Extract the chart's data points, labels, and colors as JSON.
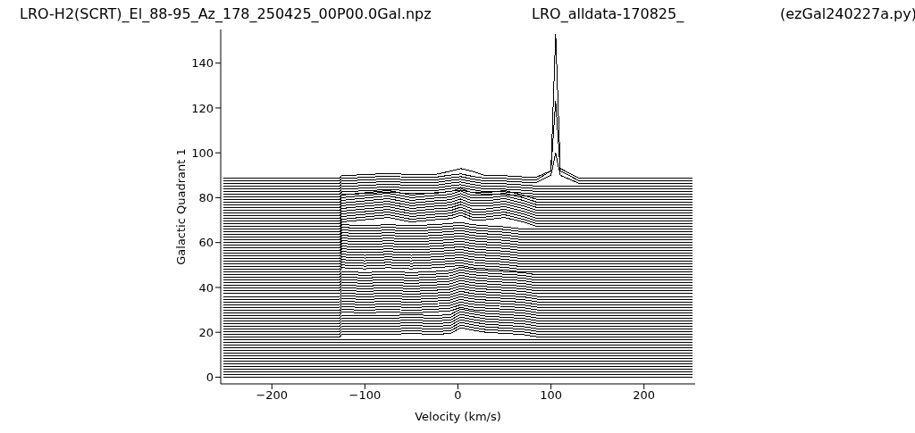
{
  "chart_data": {
    "type": "line",
    "title": "LRO-H2(SCRT)_El_88-95_Az_178_250425_00P00.0Gal.npz",
    "annotations": [
      "LRO_alldata-170825_",
      "(ezGal240227a.py)"
    ],
    "xlabel": "Velocity (km/s)",
    "ylabel": "Galactic Quadrant 1",
    "xlim": [
      -255,
      255
    ],
    "ylim": [
      -3,
      155
    ],
    "xticks": [
      {
        "value": -200,
        "label": "−200"
      },
      {
        "value": -100,
        "label": "−100"
      },
      0,
      100,
      200
    ],
    "yticks": [
      0,
      20,
      40,
      60,
      80,
      100,
      120,
      140
    ],
    "marker": "none",
    "line_style": "solid",
    "series": [
      {
        "color": "#000000",
        "x": [
          -252,
          252
        ],
        "values": [
          0,
          0
        ]
      },
      {
        "color": "#000000",
        "x": [
          -252,
          252
        ],
        "values": [
          1.2,
          1.2
        ]
      },
      {
        "color": "#000000",
        "x": [
          -252,
          252
        ],
        "values": [
          2.4,
          2.4
        ]
      },
      {
        "color": "#000000",
        "x": [
          -252,
          252
        ],
        "values": [
          3.6,
          3.6
        ]
      },
      {
        "color": "#000000",
        "x": [
          -252,
          252
        ],
        "values": [
          4.8,
          4.8
        ]
      },
      {
        "color": "#000000",
        "x": [
          -252,
          252
        ],
        "values": [
          6,
          6
        ]
      },
      {
        "color": "#000000",
        "x": [
          -252,
          252
        ],
        "values": [
          7.2,
          7.2
        ]
      },
      {
        "color": "#000000",
        "x": [
          -252,
          252
        ],
        "values": [
          8.4,
          8.4
        ]
      },
      {
        "color": "#000000",
        "x": [
          -252,
          252
        ],
        "values": [
          9.6,
          9.6
        ]
      },
      {
        "color": "#000000",
        "x": [
          -252,
          252
        ],
        "values": [
          10.8,
          10.8
        ]
      },
      {
        "color": "#000000",
        "x": [
          -252,
          252
        ],
        "values": [
          12,
          12
        ]
      },
      {
        "color": "#000000",
        "x": [
          -252,
          252
        ],
        "values": [
          13.2,
          13.2
        ]
      },
      {
        "color": "#000000",
        "x": [
          -252,
          252
        ],
        "values": [
          14.4,
          14.4
        ]
      },
      {
        "color": "#000000",
        "x": [
          -252,
          252
        ],
        "values": [
          15.6,
          15.6
        ]
      },
      {
        "color": "#000000",
        "x": [
          -252,
          252
        ],
        "values": [
          16.8,
          16.8
        ]
      },
      {
        "color": "#000000",
        "x": [
          -252,
          -127,
          -125,
          -100,
          -75,
          -50,
          -25,
          -8,
          3,
          15,
          30,
          50,
          70,
          85,
          252
        ],
        "values": [
          18,
          18,
          19,
          19,
          19,
          19.5,
          19,
          19.5,
          22,
          21,
          20,
          19.5,
          19,
          18,
          18
        ]
      },
      {
        "color": "#000000",
        "x": [
          -252,
          -127,
          -125,
          -100,
          -75,
          -50,
          -25,
          -8,
          3,
          15,
          30,
          50,
          70,
          85,
          252
        ],
        "values": [
          19.2,
          19.2,
          20.2,
          20.2,
          20.2,
          20.7,
          20.2,
          20.7,
          23.2,
          22.2,
          21.2,
          20.7,
          20.2,
          19.2,
          19.2
        ]
      },
      {
        "color": "#000000",
        "x": [
          -252,
          -127,
          -125,
          -100,
          -75,
          -50,
          -25,
          -8,
          3,
          15,
          30,
          50,
          70,
          85,
          252
        ],
        "values": [
          20.4,
          20.4,
          21.4,
          21.4,
          21.4,
          21.9,
          21.4,
          21.9,
          24.4,
          23.4,
          22.4,
          21.9,
          21.4,
          20.4,
          20.4
        ]
      },
      {
        "color": "#000000",
        "x": [
          -252,
          -127,
          -125,
          -100,
          -75,
          -50,
          -25,
          -8,
          3,
          15,
          30,
          50,
          70,
          85,
          252
        ],
        "values": [
          21.6,
          21.6,
          22.6,
          22.6,
          22.6,
          23.1,
          22.6,
          23.1,
          25.6,
          24.6,
          23.6,
          23.1,
          22.6,
          21.6,
          21.6
        ]
      },
      {
        "color": "#000000",
        "x": [
          -252,
          -127,
          -125,
          -100,
          -75,
          -50,
          -25,
          -8,
          3,
          15,
          30,
          50,
          70,
          85,
          252
        ],
        "values": [
          22.8,
          22.8,
          23.8,
          23.8,
          23.8,
          24.3,
          23.8,
          24.3,
          26.8,
          25.8,
          24.8,
          24.3,
          23.8,
          22.8,
          22.8
        ]
      },
      {
        "color": "#000000",
        "x": [
          -252,
          -127,
          -125,
          -100,
          -75,
          -50,
          -25,
          -8,
          3,
          15,
          30,
          50,
          70,
          85,
          252
        ],
        "values": [
          24,
          24,
          25,
          25,
          25,
          25.5,
          25,
          25.5,
          28,
          27,
          26,
          25.5,
          25,
          24,
          24
        ]
      },
      {
        "color": "#000000",
        "x": [
          -252,
          -127,
          -125,
          -100,
          -75,
          -50,
          -25,
          -8,
          3,
          15,
          30,
          50,
          70,
          85,
          252
        ],
        "values": [
          25.2,
          25.2,
          26.2,
          26.2,
          26.2,
          26.7,
          26.2,
          26.7,
          29.2,
          28.2,
          27.2,
          26.7,
          26.2,
          25.2,
          25.2
        ]
      },
      {
        "color": "#000000",
        "x": [
          -252,
          -127,
          -125,
          -100,
          -75,
          -50,
          -25,
          -8,
          3,
          15,
          30,
          50,
          70,
          85,
          252
        ],
        "values": [
          26.4,
          26.4,
          27.4,
          27.4,
          27.4,
          27.9,
          27.4,
          27.9,
          30.4,
          29.4,
          28.4,
          27.9,
          27.4,
          26.4,
          26.4
        ]
      },
      {
        "color": "#000000",
        "x": [
          -252,
          -127,
          -125,
          -100,
          -75,
          -50,
          -25,
          -8,
          3,
          15,
          30,
          50,
          70,
          85,
          252
        ],
        "values": [
          27.6,
          27.6,
          29.1,
          28.6,
          29.1,
          28.6,
          29.1,
          29.6,
          31.1,
          30.1,
          29.6,
          29.1,
          28.6,
          27.6,
          27.6
        ]
      },
      {
        "color": "#000000",
        "x": [
          -252,
          -127,
          -125,
          -100,
          -75,
          -50,
          -25,
          -8,
          3,
          15,
          30,
          50,
          70,
          85,
          252
        ],
        "values": [
          28.8,
          28.8,
          30.3,
          29.8,
          30.3,
          29.8,
          30.3,
          30.8,
          32.3,
          31.3,
          30.8,
          30.3,
          29.8,
          28.8,
          28.8
        ]
      },
      {
        "color": "#000000",
        "x": [
          -252,
          -127,
          -125,
          -100,
          -75,
          -50,
          -25,
          -8,
          3,
          15,
          30,
          50,
          70,
          85,
          252
        ],
        "values": [
          30,
          30,
          31.5,
          31,
          31.5,
          31,
          31.5,
          32,
          33.5,
          32.5,
          32,
          31.5,
          31,
          30,
          30
        ]
      },
      {
        "color": "#000000",
        "x": [
          -252,
          -127,
          -125,
          -100,
          -75,
          -50,
          -25,
          -8,
          3,
          15,
          30,
          50,
          70,
          85,
          252
        ],
        "values": [
          31.2,
          31.2,
          32.7,
          32.2,
          32.7,
          32.2,
          32.7,
          33.2,
          34.7,
          33.7,
          33.2,
          32.7,
          32.2,
          31.2,
          31.2
        ]
      },
      {
        "color": "#000000",
        "x": [
          -252,
          -127,
          -125,
          -100,
          -75,
          -50,
          -25,
          -8,
          3,
          15,
          30,
          50,
          70,
          85,
          252
        ],
        "values": [
          32.4,
          32.4,
          33.9,
          33.4,
          33.9,
          33.4,
          33.9,
          34.4,
          35.9,
          34.9,
          34.4,
          33.9,
          33.4,
          32.4,
          32.4
        ]
      },
      {
        "color": "#000000",
        "x": [
          -252,
          -127,
          -125,
          -100,
          -75,
          -50,
          -25,
          -8,
          3,
          15,
          30,
          50,
          70,
          85,
          252
        ],
        "values": [
          33.6,
          33.6,
          35.1,
          34.6,
          35.1,
          34.6,
          35.1,
          35.6,
          37.1,
          36.1,
          35.6,
          35.1,
          34.6,
          33.6,
          33.6
        ]
      },
      {
        "color": "#000000",
        "x": [
          -252,
          -127,
          -125,
          -100,
          -75,
          -50,
          -25,
          -8,
          3,
          15,
          30,
          50,
          70,
          85,
          252
        ],
        "values": [
          34.8,
          34.8,
          36.3,
          35.8,
          36.3,
          35.8,
          36.3,
          36.8,
          38.3,
          37.3,
          36.8,
          36.3,
          35.8,
          34.8,
          34.8
        ]
      },
      {
        "color": "#000000",
        "x": [
          -252,
          -127,
          -125,
          -100,
          -75,
          -50,
          -25,
          -8,
          3,
          15,
          30,
          50,
          70,
          85,
          252
        ],
        "values": [
          36,
          36,
          37.5,
          37,
          37.5,
          37,
          37.5,
          38,
          39.5,
          38.5,
          38,
          37.5,
          37,
          36,
          36
        ]
      },
      {
        "color": "#000000",
        "x": [
          -252,
          -127,
          -125,
          -100,
          -75,
          -50,
          -25,
          -8,
          3,
          15,
          30,
          50,
          70,
          85,
          252
        ],
        "values": [
          37.2,
          37.2,
          38.7,
          38.2,
          38.7,
          38.2,
          38.7,
          39.2,
          40.7,
          39.7,
          39.2,
          38.7,
          38.2,
          37.2,
          37.2
        ]
      },
      {
        "color": "#000000",
        "x": [
          -252,
          -127,
          -125,
          -100,
          -75,
          -50,
          -25,
          -8,
          3,
          15,
          30,
          50,
          70,
          85,
          252
        ],
        "values": [
          38.4,
          38.4,
          39.9,
          39.4,
          39.9,
          39.4,
          39.9,
          40.4,
          41.9,
          40.9,
          40.4,
          39.9,
          39.4,
          38.4,
          38.4
        ]
      },
      {
        "color": "#000000",
        "x": [
          -252,
          -127,
          -125,
          -100,
          -75,
          -50,
          -25,
          -8,
          3,
          15,
          30,
          50,
          70,
          85,
          252
        ],
        "values": [
          39.6,
          39.6,
          41.1,
          40.6,
          41.1,
          40.6,
          41.1,
          41.6,
          43.1,
          42.1,
          41.6,
          41.1,
          40.6,
          39.6,
          39.6
        ]
      },
      {
        "color": "#000000",
        "x": [
          -252,
          -127,
          -125,
          -100,
          -75,
          -50,
          -25,
          -8,
          3,
          15,
          30,
          50,
          70,
          85,
          252
        ],
        "values": [
          40.8,
          40.8,
          42.3,
          41.8,
          42.3,
          41.8,
          42.3,
          42.8,
          44.3,
          43.3,
          42.8,
          42.3,
          41.8,
          40.8,
          40.8
        ]
      },
      {
        "color": "#000000",
        "x": [
          -252,
          -127,
          -125,
          -100,
          -75,
          -50,
          -25,
          -8,
          3,
          15,
          30,
          50,
          70,
          85,
          252
        ],
        "values": [
          42,
          42,
          43.5,
          43,
          43.5,
          43,
          43.5,
          44,
          45.5,
          44.5,
          44,
          43.5,
          43,
          42,
          42
        ]
      },
      {
        "color": "#000000",
        "x": [
          -252,
          -127,
          -125,
          -100,
          -75,
          -50,
          -25,
          -8,
          3,
          15,
          30,
          50,
          70,
          85,
          252
        ],
        "values": [
          43.2,
          43.2,
          44.7,
          44.2,
          44.7,
          44.2,
          44.7,
          45.2,
          46.7,
          45.7,
          45.2,
          44.7,
          44.2,
          43.2,
          43.2
        ]
      },
      {
        "color": "#000000",
        "x": [
          -252,
          -127,
          -125,
          -100,
          -75,
          -50,
          -25,
          -8,
          3,
          15,
          30,
          50,
          70,
          85,
          252
        ],
        "values": [
          44.4,
          44.4,
          45.9,
          45.4,
          45.9,
          45.4,
          45.9,
          46.4,
          47.9,
          46.9,
          46.4,
          45.9,
          45.4,
          44.4,
          44.4
        ]
      },
      {
        "color": "#000000",
        "x": [
          -252,
          -127,
          -125,
          -100,
          -75,
          -50,
          -25,
          -8,
          3,
          15,
          30,
          50,
          70,
          85,
          252
        ],
        "values": [
          45.6,
          45.6,
          47.1,
          46.6,
          47.1,
          46.6,
          47.1,
          47.6,
          49.1,
          48.1,
          47.6,
          47.1,
          46.6,
          45.6,
          45.6
        ]
      },
      {
        "color": "#000000",
        "x": [
          -252,
          -127,
          -125,
          -100,
          -75,
          -50,
          -25,
          -8,
          3,
          15,
          30,
          50,
          70,
          252
        ],
        "values": [
          46.8,
          46.8,
          48.8,
          48.3,
          48.8,
          48.3,
          48.8,
          49.3,
          49.8,
          48.8,
          48.3,
          47.8,
          46.8,
          46.8
        ]
      },
      {
        "color": "#000000",
        "x": [
          -252,
          -127,
          -125,
          -100,
          -75,
          -50,
          -25,
          -8,
          3,
          15,
          30,
          50,
          70,
          252
        ],
        "values": [
          48,
          48,
          50,
          49.5,
          50,
          49.5,
          50,
          50.5,
          51,
          50,
          49.5,
          49,
          48,
          48
        ]
      },
      {
        "color": "#000000",
        "x": [
          -252,
          -127,
          -125,
          -100,
          -75,
          -50,
          -25,
          -8,
          3,
          15,
          30,
          50,
          70,
          252
        ],
        "values": [
          49.2,
          49.2,
          51.2,
          50.7,
          51.2,
          50.7,
          51.2,
          51.7,
          52.2,
          51.2,
          50.7,
          50.2,
          49.2,
          49.2
        ]
      },
      {
        "color": "#000000",
        "x": [
          -252,
          -127,
          -125,
          -100,
          -75,
          -50,
          -25,
          -8,
          3,
          15,
          30,
          50,
          70,
          252
        ],
        "values": [
          50.4,
          50.4,
          52.4,
          51.9,
          52.4,
          51.9,
          52.4,
          52.9,
          53.4,
          52.4,
          51.9,
          51.4,
          50.4,
          50.4
        ]
      },
      {
        "color": "#000000",
        "x": [
          -252,
          -127,
          -125,
          -100,
          -75,
          -50,
          -25,
          -8,
          3,
          15,
          30,
          50,
          70,
          252
        ],
        "values": [
          51.6,
          51.6,
          53.6,
          53.1,
          53.6,
          53.1,
          53.6,
          54.1,
          54.6,
          53.6,
          53.1,
          52.6,
          51.6,
          51.6
        ]
      },
      {
        "color": "#000000",
        "x": [
          -252,
          -127,
          -125,
          -100,
          -75,
          -50,
          -25,
          -8,
          3,
          15,
          30,
          50,
          70,
          252
        ],
        "values": [
          52.8,
          52.8,
          54.8,
          54.3,
          54.8,
          54.3,
          54.8,
          55.3,
          55.8,
          54.8,
          54.3,
          53.8,
          52.8,
          52.8
        ]
      },
      {
        "color": "#000000",
        "x": [
          -252,
          -127,
          -125,
          -100,
          -75,
          -50,
          -25,
          -8,
          3,
          15,
          30,
          50,
          70,
          252
        ],
        "values": [
          54,
          54,
          56,
          55.5,
          56,
          55.5,
          56,
          56.5,
          57,
          56,
          55.5,
          55,
          54,
          54
        ]
      },
      {
        "color": "#000000",
        "x": [
          -252,
          -127,
          -125,
          -100,
          -75,
          -50,
          -25,
          -8,
          3,
          15,
          30,
          50,
          70,
          252
        ],
        "values": [
          55.2,
          55.2,
          57.2,
          56.7,
          57.2,
          56.7,
          57.2,
          57.7,
          58.2,
          57.2,
          56.7,
          56.2,
          55.2,
          55.2
        ]
      },
      {
        "color": "#000000",
        "x": [
          -252,
          -127,
          -125,
          -100,
          -75,
          -50,
          -25,
          -8,
          3,
          15,
          30,
          50,
          70,
          252
        ],
        "values": [
          56.4,
          56.4,
          58.4,
          57.9,
          58.4,
          57.9,
          58.4,
          58.9,
          59.4,
          58.4,
          57.9,
          57.4,
          56.4,
          56.4
        ]
      },
      {
        "color": "#000000",
        "x": [
          -252,
          -127,
          -125,
          -100,
          -75,
          -50,
          -25,
          -8,
          3,
          15,
          30,
          50,
          70,
          252
        ],
        "values": [
          57.6,
          57.6,
          59.6,
          59.1,
          59.6,
          59.1,
          59.6,
          60.1,
          60.6,
          59.6,
          59.1,
          58.6,
          57.6,
          57.6
        ]
      },
      {
        "color": "#000000",
        "x": [
          -252,
          -127,
          -125,
          -100,
          -75,
          -50,
          -25,
          -8,
          3,
          15,
          30,
          50,
          70,
          252
        ],
        "values": [
          58.8,
          58.8,
          60.8,
          60.3,
          60.8,
          60.3,
          60.8,
          61.3,
          61.8,
          60.8,
          60.3,
          59.8,
          58.8,
          58.8
        ]
      },
      {
        "color": "#000000",
        "x": [
          -252,
          -127,
          -125,
          -100,
          -75,
          -50,
          -25,
          -8,
          3,
          15,
          30,
          50,
          70,
          252
        ],
        "values": [
          60,
          60,
          62,
          61.5,
          62,
          61.5,
          62,
          62.5,
          63,
          62,
          61.5,
          61,
          60,
          60
        ]
      },
      {
        "color": "#000000",
        "x": [
          -252,
          -127,
          -125,
          -100,
          -75,
          -50,
          -25,
          -8,
          3,
          15,
          30,
          50,
          70,
          252
        ],
        "values": [
          61.2,
          61.2,
          63.2,
          62.7,
          63.2,
          62.7,
          63.2,
          63.7,
          64.2,
          63.2,
          62.7,
          62.2,
          61.2,
          61.2
        ]
      },
      {
        "color": "#000000",
        "x": [
          -252,
          -127,
          -125,
          -100,
          -75,
          -50,
          -25,
          -8,
          3,
          15,
          30,
          50,
          70,
          252
        ],
        "values": [
          62.4,
          62.4,
          64.4,
          63.9,
          64.4,
          63.9,
          64.4,
          64.9,
          65.4,
          64.4,
          63.9,
          63.4,
          62.4,
          62.4
        ]
      },
      {
        "color": "#000000",
        "x": [
          -252,
          -127,
          -125,
          -100,
          -75,
          -50,
          -25,
          -8,
          3,
          15,
          30,
          50,
          70,
          252
        ],
        "values": [
          63.6,
          63.6,
          65.6,
          65.1,
          65.6,
          65.1,
          65.6,
          66.1,
          66.6,
          65.6,
          65.1,
          64.6,
          63.6,
          63.6
        ]
      },
      {
        "color": "#000000",
        "x": [
          -252,
          -127,
          -125,
          -100,
          -75,
          -50,
          -25,
          -8,
          3,
          15,
          30,
          50,
          70,
          252
        ],
        "values": [
          64.8,
          64.8,
          66.8,
          66.3,
          66.8,
          66.3,
          66.8,
          67.3,
          67.8,
          66.8,
          66.3,
          65.8,
          64.8,
          64.8
        ]
      },
      {
        "color": "#000000",
        "x": [
          -252,
          -127,
          -125,
          -100,
          -75,
          -50,
          -25,
          -8,
          3,
          15,
          30,
          50,
          70,
          252
        ],
        "values": [
          66,
          66,
          68,
          67.5,
          68,
          67.5,
          68,
          68.5,
          69,
          68,
          67.5,
          67,
          66,
          66
        ]
      },
      {
        "color": "#000000",
        "x": [
          -252,
          -127,
          -125,
          -100,
          -75,
          -50,
          -25,
          -8,
          3,
          15,
          30,
          50,
          70,
          85,
          252
        ],
        "values": [
          67.2,
          67.2,
          69.2,
          70.2,
          71.2,
          69.2,
          70.2,
          70.7,
          72.2,
          70.2,
          70.2,
          71.2,
          69.2,
          67.2,
          67.2
        ]
      },
      {
        "color": "#000000",
        "x": [
          -252,
          -127,
          -125,
          -100,
          -75,
          -50,
          -25,
          -8,
          3,
          15,
          30,
          50,
          70,
          85,
          252
        ],
        "values": [
          68.4,
          68.4,
          70.4,
          71.4,
          72.4,
          70.4,
          71.4,
          71.9,
          73.4,
          71.4,
          71.4,
          72.4,
          70.4,
          68.4,
          68.4
        ]
      },
      {
        "color": "#000000",
        "x": [
          -252,
          -127,
          -125,
          -100,
          -75,
          -50,
          -25,
          -8,
          3,
          15,
          30,
          50,
          70,
          85,
          252
        ],
        "values": [
          69.6,
          69.6,
          71.6,
          72.6,
          73.6,
          71.6,
          72.6,
          73.1,
          74.6,
          72.6,
          72.6,
          73.6,
          71.6,
          69.6,
          69.6
        ]
      },
      {
        "color": "#000000",
        "x": [
          -252,
          -127,
          -125,
          -100,
          -75,
          -50,
          -25,
          -8,
          3,
          15,
          30,
          50,
          70,
          85,
          252
        ],
        "values": [
          70.8,
          70.8,
          72.8,
          73.8,
          74.8,
          72.8,
          73.8,
          74.3,
          75.8,
          73.8,
          73.8,
          74.8,
          72.8,
          70.8,
          70.8
        ]
      },
      {
        "color": "#000000",
        "x": [
          -252,
          -127,
          -125,
          -100,
          -75,
          -50,
          -25,
          -8,
          3,
          15,
          30,
          50,
          70,
          85,
          252
        ],
        "values": [
          72,
          72,
          74,
          75,
          76,
          74,
          75,
          75.5,
          77,
          75,
          75,
          76,
          74,
          72,
          72
        ]
      },
      {
        "color": "#000000",
        "x": [
          -252,
          -127,
          -125,
          -100,
          -75,
          -50,
          -25,
          -8,
          3,
          15,
          30,
          50,
          70,
          85,
          252
        ],
        "values": [
          73.2,
          73.2,
          75.2,
          76.2,
          77.2,
          75.2,
          76.2,
          76.7,
          78.2,
          76.2,
          76.2,
          77.2,
          75.2,
          73.2,
          73.2
        ]
      },
      {
        "color": "#000000",
        "x": [
          -252,
          -127,
          -125,
          -100,
          -75,
          -50,
          -25,
          -8,
          3,
          15,
          30,
          50,
          70,
          85,
          252
        ],
        "values": [
          74.4,
          74.4,
          76.4,
          77.4,
          78.4,
          76.4,
          77.4,
          77.9,
          79.4,
          77.4,
          77.4,
          78.4,
          76.4,
          74.4,
          74.4
        ]
      },
      {
        "color": "#000000",
        "x": [
          -252,
          -127,
          -125,
          -100,
          -75,
          -50,
          -25,
          -8,
          3,
          15,
          30,
          50,
          70,
          85,
          252
        ],
        "values": [
          75.6,
          75.6,
          77.6,
          78.6,
          79.6,
          77.6,
          78.6,
          79.1,
          80.6,
          78.6,
          78.6,
          79.6,
          77.6,
          75.6,
          75.6
        ]
      },
      {
        "color": "#000000",
        "x": [
          -252,
          -127,
          -125,
          -100,
          -75,
          -50,
          -25,
          -8,
          3,
          15,
          30,
          50,
          70,
          85,
          252
        ],
        "values": [
          76.8,
          76.8,
          78.8,
          79.8,
          80.8,
          78.8,
          79.8,
          80.3,
          81.8,
          79.8,
          79.8,
          80.8,
          78.8,
          76.8,
          76.8
        ]
      },
      {
        "color": "#000000",
        "x": [
          -252,
          -127,
          -125,
          -100,
          -75,
          -50,
          -25,
          -8,
          3,
          15,
          30,
          50,
          70,
          85,
          252
        ],
        "values": [
          78,
          78,
          80,
          81,
          82,
          80,
          81,
          81.5,
          83,
          81,
          81,
          82,
          80,
          78,
          78
        ]
      },
      {
        "color": "#000000",
        "x": [
          -252,
          -127,
          -125,
          -100,
          -75,
          -50,
          -25,
          -8,
          3,
          15,
          30,
          50,
          70,
          85,
          252
        ],
        "values": [
          79.2,
          79.2,
          81.2,
          82.2,
          83.2,
          81.2,
          82.2,
          82.7,
          84.2,
          82.2,
          82.2,
          83.2,
          81.2,
          79.2,
          79.2
        ]
      },
      {
        "color": "#000000",
        "x": [
          -252,
          -127,
          -125,
          -100,
          -75,
          -50,
          -25,
          -8,
          3,
          15,
          30,
          50,
          70,
          85,
          252
        ],
        "values": [
          80.4,
          80.4,
          81.4,
          81.9,
          82.4,
          81.9,
          81.9,
          82.9,
          83.4,
          82.4,
          81.4,
          81.4,
          80.9,
          80.4,
          80.4
        ]
      },
      {
        "color": "#000000",
        "x": [
          -252,
          -127,
          -125,
          -100,
          -75,
          -50,
          -25,
          -8,
          3,
          15,
          30,
          50,
          70,
          85,
          252
        ],
        "values": [
          81.6,
          81.6,
          82.6,
          83.1,
          83.6,
          83.1,
          83.1,
          84.1,
          84.6,
          83.6,
          82.6,
          82.6,
          82.1,
          81.6,
          81.6
        ]
      },
      {
        "color": "#000000",
        "x": [
          -252,
          -127,
          -125,
          -100,
          -75,
          -50,
          -25,
          -8,
          3,
          15,
          30,
          50,
          70,
          85,
          252
        ],
        "values": [
          82.8,
          82.8,
          83.8,
          84.3,
          84.8,
          84.3,
          84.3,
          85.3,
          85.8,
          84.8,
          83.8,
          83.8,
          83.3,
          82.8,
          82.8
        ]
      },
      {
        "color": "#000000",
        "x": [
          -252,
          -127,
          -125,
          -100,
          -75,
          -50,
          -25,
          -8,
          3,
          15,
          30,
          50,
          70,
          85,
          252
        ],
        "values": [
          84,
          84,
          85,
          85.5,
          86,
          85.5,
          85.5,
          86.5,
          87,
          86,
          85,
          85,
          84.5,
          84,
          84
        ]
      },
      {
        "color": "#000000",
        "x": [
          -252,
          -127,
          -125,
          -100,
          -75,
          -50,
          -25,
          -8,
          3,
          15,
          30,
          50,
          70,
          85,
          252
        ],
        "values": [
          85.2,
          85.2,
          86.2,
          86.7,
          87.2,
          86.7,
          86.7,
          87.7,
          88.2,
          87.2,
          86.2,
          86.2,
          85.7,
          85.2,
          85.2
        ]
      },
      {
        "color": "#000000",
        "x": [
          -252,
          -127,
          -125,
          -100,
          -75,
          -50,
          -25,
          -8,
          3,
          15,
          30,
          50,
          70,
          85,
          100,
          105,
          110,
          130,
          252
        ],
        "values": [
          86.4,
          86.4,
          87.4,
          87.9,
          88.4,
          87.9,
          87.9,
          88.9,
          89.4,
          88.4,
          87.4,
          87.4,
          86.9,
          86.9,
          90,
          100,
          90,
          86.4,
          86.4
        ]
      },
      {
        "color": "#000000",
        "x": [
          -252,
          -127,
          -125,
          -100,
          -75,
          -50,
          -25,
          -8,
          3,
          15,
          30,
          50,
          70,
          85,
          100,
          105,
          110,
          130,
          252
        ],
        "values": [
          87.6,
          87.6,
          88.6,
          89.1,
          89.6,
          89.1,
          89.1,
          90.1,
          90.6,
          89.6,
          88.6,
          88.6,
          88.1,
          88.1,
          92,
          123,
          92,
          87.6,
          87.6
        ]
      },
      {
        "color": "#000000",
        "x": [
          -252,
          -127,
          -125,
          -100,
          -75,
          -50,
          -25,
          -8,
          3,
          15,
          30,
          50,
          70,
          85,
          100,
          105,
          110,
          130,
          252
        ],
        "values": [
          88.8,
          88.8,
          89.8,
          90.3,
          90.8,
          90.3,
          90.3,
          91.8,
          93,
          91.8,
          89.8,
          89.8,
          89.3,
          89.3,
          92,
          153,
          93,
          88.8,
          88.8
        ]
      }
    ]
  }
}
